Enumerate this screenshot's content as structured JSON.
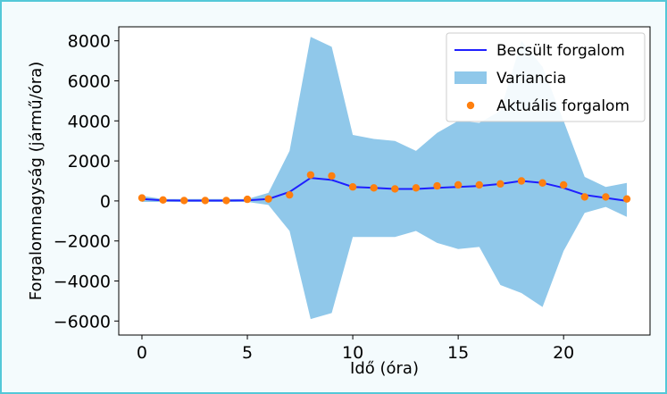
{
  "chart_data": {
    "type": "line",
    "xlabel": "Idő (óra)",
    "ylabel": "Forgalomnagyság (jármű/óra)",
    "xlim": [
      -1.1,
      24.1
    ],
    "ylim": [
      -6700,
      8700
    ],
    "xticks": [
      0,
      5,
      10,
      15,
      20
    ],
    "yticks": [
      -6000,
      -4000,
      -2000,
      0,
      2000,
      4000,
      6000,
      8000
    ],
    "ytick_labels": [
      "−6000",
      "−4000",
      "−2000",
      "0",
      "2000",
      "4000",
      "6000",
      "8000"
    ],
    "grid": false,
    "legend_position": "top-right",
    "x": [
      0,
      1,
      2,
      3,
      4,
      5,
      6,
      7,
      8,
      9,
      10,
      11,
      12,
      13,
      14,
      15,
      16,
      17,
      18,
      19,
      20,
      21,
      22,
      23
    ],
    "series": [
      {
        "name": "Becsült forgalom",
        "kind": "line",
        "color": "#1f1fff",
        "values": [
          100,
          30,
          20,
          20,
          20,
          30,
          100,
          450,
          1150,
          1050,
          700,
          650,
          600,
          600,
          650,
          700,
          750,
          850,
          1000,
          900,
          650,
          300,
          150,
          0
        ]
      },
      {
        "name": "Variancia",
        "kind": "band",
        "color": "#90c8ea",
        "lower": [
          -50,
          -50,
          -50,
          -50,
          -50,
          -50,
          -200,
          -1500,
          -5900,
          -5600,
          -1800,
          -1800,
          -1800,
          -1500,
          -2100,
          -2400,
          -2300,
          -4200,
          -4600,
          -5300,
          -2500,
          -600,
          -300,
          -800
        ],
        "upper": [
          250,
          100,
          100,
          100,
          100,
          100,
          400,
          2500,
          8200,
          7700,
          3300,
          3100,
          3000,
          2500,
          3400,
          4000,
          3900,
          4500,
          8000,
          6700,
          4000,
          1200,
          700,
          900
        ]
      },
      {
        "name": "Aktuális forgalom",
        "kind": "scatter",
        "color": "#ff7f0e",
        "values": [
          150,
          50,
          20,
          20,
          20,
          80,
          100,
          300,
          1300,
          1250,
          700,
          650,
          600,
          650,
          750,
          800,
          800,
          850,
          1000,
          900,
          800,
          200,
          200,
          100
        ]
      }
    ]
  }
}
